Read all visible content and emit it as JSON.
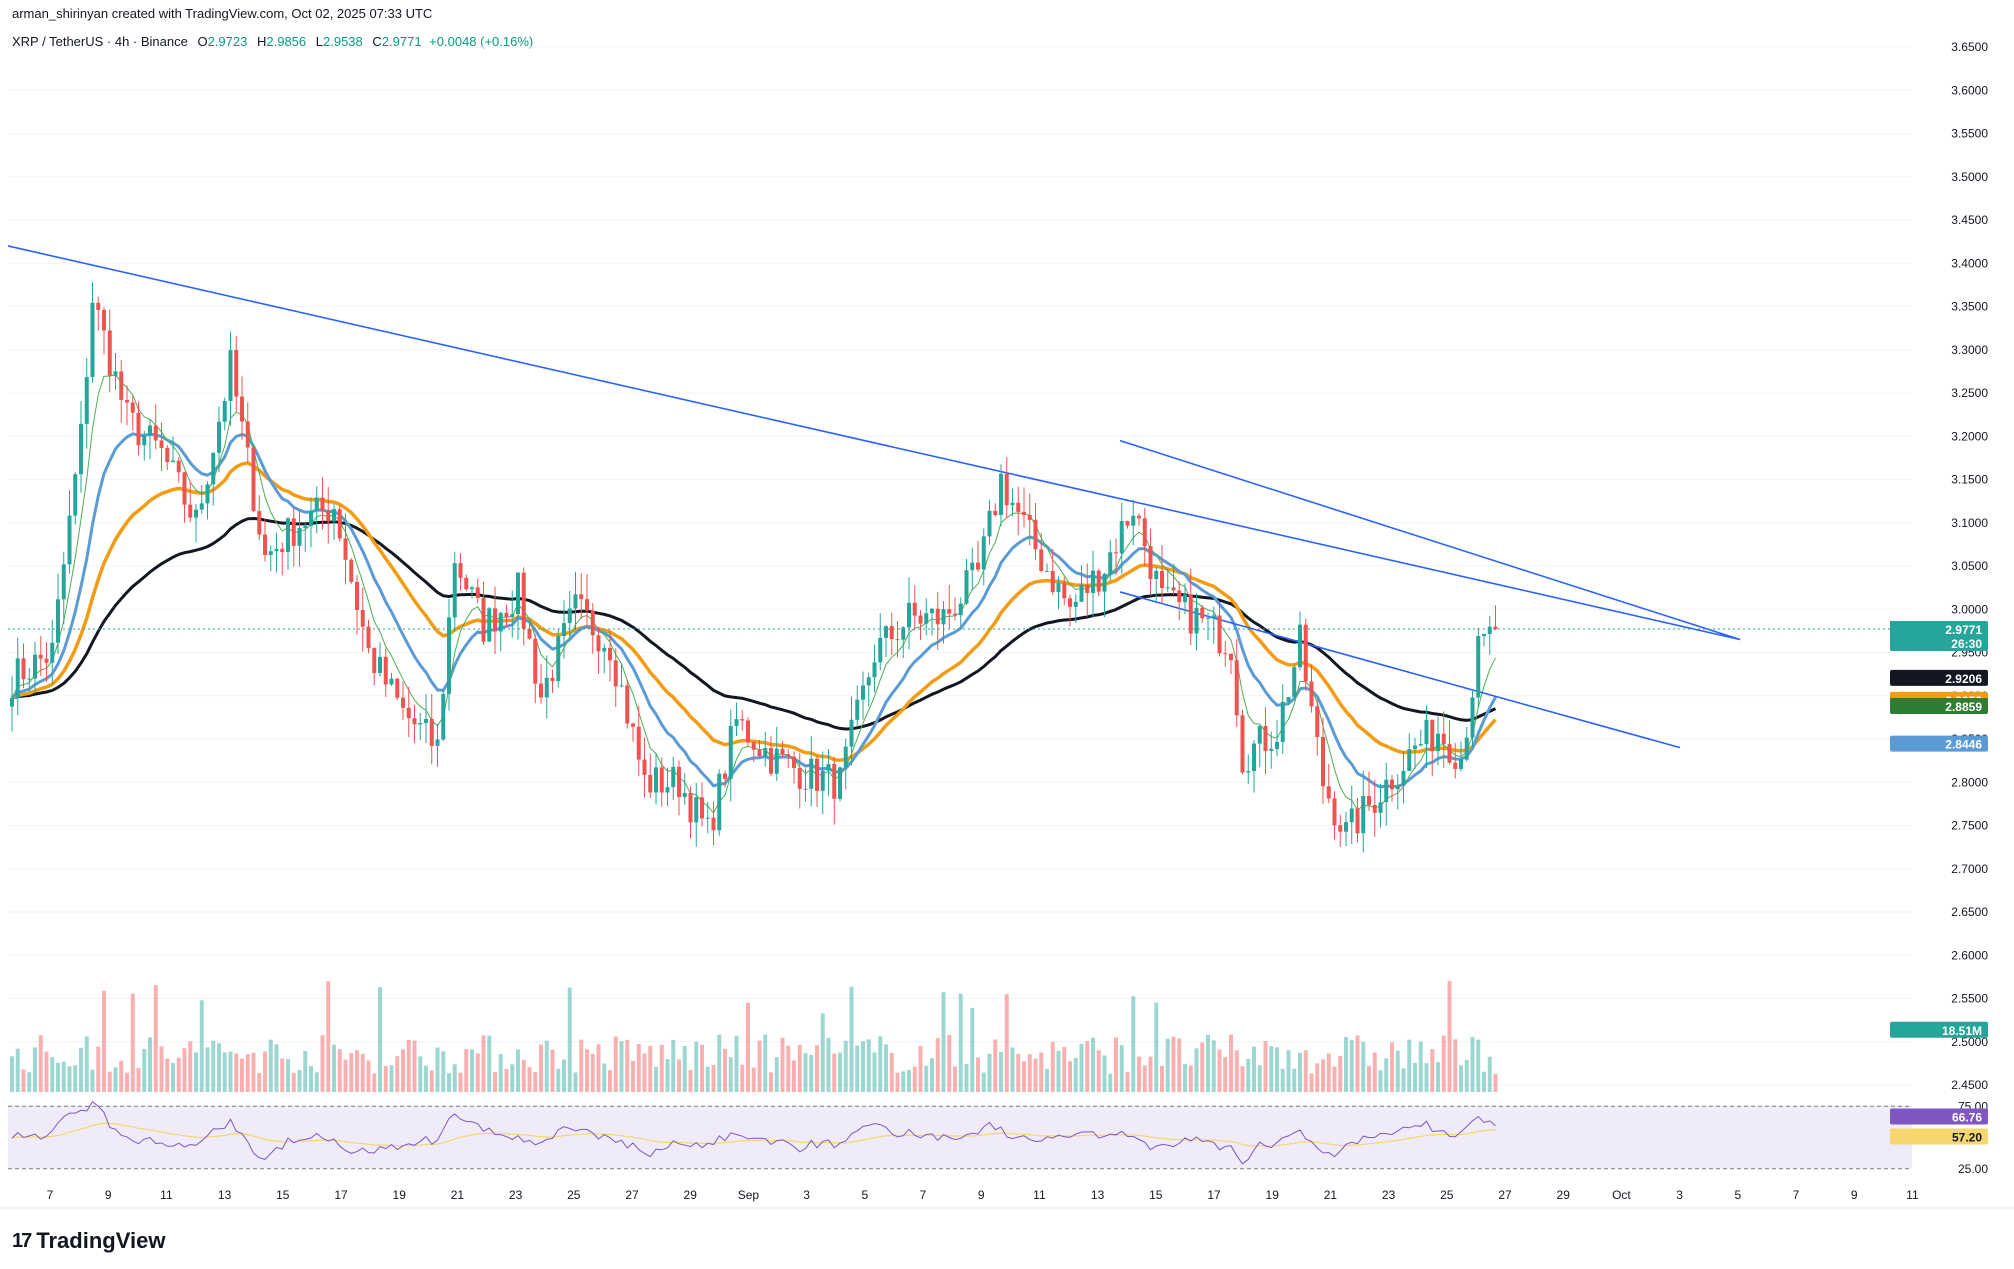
{
  "header": {
    "author_line": "arman_shirinyan created with TradingView.com, Oct 02, 2025 07:33 UTC"
  },
  "symbol": {
    "pair": "XRP / TetherUS · 4h · Binance",
    "open_label": "O",
    "open": "2.9723",
    "high_label": "H",
    "high": "2.9856",
    "low_label": "L",
    "low": "2.9538",
    "close_label": "C",
    "close": "2.9771",
    "change": "+0.0048 (+0.16%)"
  },
  "colors": {
    "up": "#26a69a",
    "down": "#ef5350",
    "ema_fast": "#4caf50",
    "ma_blue": "#5b9bd5",
    "ma_orange": "#f39c12",
    "ma_black": "#131722",
    "trendline": "#2962ff",
    "rsi_line": "#7e57c2",
    "rsi_ma": "#f5d76e"
  },
  "chart_data": {
    "type": "candlestick",
    "symbol": "XRPUSDT",
    "timeframe": "4h",
    "price_axis_ticks": [
      "3.6500",
      "3.6000",
      "3.5500",
      "3.5000",
      "3.4500",
      "3.4000",
      "3.3500",
      "3.3000",
      "3.2500",
      "3.2000",
      "3.1500",
      "3.1000",
      "3.0500",
      "3.0000",
      "2.9500",
      "2.9000",
      "2.8500",
      "2.8000",
      "2.7500",
      "2.7000",
      "2.6500",
      "2.6000",
      "2.5500",
      "2.5000",
      "2.4500"
    ],
    "ylim": [
      2.44,
      3.68
    ],
    "date_ticks": [
      "7",
      "9",
      "11",
      "13",
      "15",
      "17",
      "19",
      "21",
      "23",
      "25",
      "27",
      "29",
      "Sep",
      "3",
      "5",
      "7",
      "9",
      "11",
      "13",
      "15",
      "17",
      "19",
      "21",
      "23",
      "25",
      "27",
      "29",
      "Oct",
      "3",
      "5",
      "7",
      "9",
      "11"
    ],
    "anchors": [
      {
        "i": 0,
        "p": 2.92
      },
      {
        "i": 7,
        "p": 2.95
      },
      {
        "i": 12,
        "p": 3.2
      },
      {
        "i": 14,
        "p": 3.36
      },
      {
        "i": 20,
        "p": 3.22
      },
      {
        "i": 26,
        "p": 3.18
      },
      {
        "i": 32,
        "p": 3.1
      },
      {
        "i": 38,
        "p": 3.28
      },
      {
        "i": 44,
        "p": 3.06
      },
      {
        "i": 50,
        "p": 3.1
      },
      {
        "i": 56,
        "p": 3.12
      },
      {
        "i": 62,
        "p": 2.95
      },
      {
        "i": 68,
        "p": 2.88
      },
      {
        "i": 74,
        "p": 2.84
      },
      {
        "i": 77,
        "p": 3.06
      },
      {
        "i": 82,
        "p": 2.98
      },
      {
        "i": 88,
        "p": 3.02
      },
      {
        "i": 92,
        "p": 2.9
      },
      {
        "i": 98,
        "p": 3.0
      },
      {
        "i": 104,
        "p": 2.96
      },
      {
        "i": 110,
        "p": 2.8
      },
      {
        "i": 116,
        "p": 2.8
      },
      {
        "i": 121,
        "p": 2.74
      },
      {
        "i": 126,
        "p": 2.87
      },
      {
        "i": 132,
        "p": 2.83
      },
      {
        "i": 138,
        "p": 2.81
      },
      {
        "i": 144,
        "p": 2.8
      },
      {
        "i": 150,
        "p": 2.95
      },
      {
        "i": 156,
        "p": 2.99
      },
      {
        "i": 162,
        "p": 2.99
      },
      {
        "i": 168,
        "p": 3.04
      },
      {
        "i": 172,
        "p": 3.15
      },
      {
        "i": 178,
        "p": 3.07
      },
      {
        "i": 184,
        "p": 3.0
      },
      {
        "i": 190,
        "p": 3.05
      },
      {
        "i": 195,
        "p": 3.12
      },
      {
        "i": 200,
        "p": 3.01
      },
      {
        "i": 206,
        "p": 2.99
      },
      {
        "i": 212,
        "p": 2.96
      },
      {
        "i": 214,
        "p": 2.83
      },
      {
        "i": 220,
        "p": 2.86
      },
      {
        "i": 224,
        "p": 2.96
      },
      {
        "i": 228,
        "p": 2.8
      },
      {
        "i": 232,
        "p": 2.74
      },
      {
        "i": 238,
        "p": 2.79
      },
      {
        "i": 244,
        "p": 2.84
      },
      {
        "i": 248,
        "p": 2.86
      },
      {
        "i": 252,
        "p": 2.83
      },
      {
        "i": 255,
        "p": 2.95
      },
      {
        "i": 258,
        "p": 2.977
      }
    ],
    "candle_count": 259,
    "price_labels": [
      {
        "name": "XRPUSDT",
        "value": "2.9771",
        "countdown": "26:30",
        "color": "#26a69a"
      },
      {
        "name": "black_ma",
        "value": "2.9206",
        "color": "#131722"
      },
      {
        "name": "orange_ma",
        "value": "2.8952",
        "color": "#f39c12"
      },
      {
        "name": "green_ema",
        "value": "2.8859",
        "color": "#2e7d32"
      },
      {
        "name": "blue_ma",
        "value": "2.8446",
        "color": "#5b9bd5"
      }
    ],
    "volume_label": "18.51M",
    "rsi": {
      "ticks": [
        "75.00",
        "25.00"
      ],
      "value": "66.76",
      "ma_value": "57.20"
    },
    "trendlines": [
      {
        "from_price": 3.42,
        "to_price": 2.965
      },
      {
        "from_price": 3.195,
        "to_price": 2.965
      }
    ]
  },
  "branding": {
    "logo_text": "TradingView",
    "logo_mark": "17"
  }
}
